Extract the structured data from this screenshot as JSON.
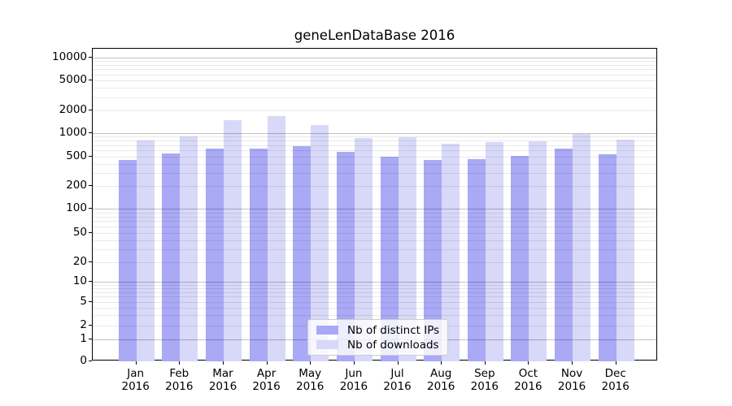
{
  "chart_data": {
    "type": "bar",
    "title": "geneLenDataBase 2016",
    "yscale": "symlog",
    "categories": [
      "Jan",
      "Feb",
      "Mar",
      "Apr",
      "May",
      "Jun",
      "Jul",
      "Aug",
      "Sep",
      "Oct",
      "Nov",
      "Dec"
    ],
    "category_year": "2016",
    "series": [
      {
        "name": "Nb of distinct IPs",
        "color": "#a9a9f6",
        "values": [
          450,
          550,
          630,
          640,
          690,
          575,
          500,
          450,
          460,
          515,
          630,
          535
        ]
      },
      {
        "name": "Nb of downloads",
        "color": "#d8d8f8",
        "values": [
          800,
          910,
          1480,
          1700,
          1270,
          860,
          890,
          730,
          770,
          780,
          970,
          830
        ]
      }
    ],
    "yticks": [
      0,
      1,
      2,
      5,
      10,
      20,
      50,
      100,
      200,
      500,
      1000,
      2000,
      5000,
      10000
    ],
    "ylim": [
      0,
      10000
    ],
    "grid": true,
    "legend_position": "lower-center-inside",
    "colors": {
      "grid_minor": "#e9e9e9",
      "grid_major": "#c7c7c7",
      "axis": "#000000",
      "background": "#ffffff"
    }
  }
}
